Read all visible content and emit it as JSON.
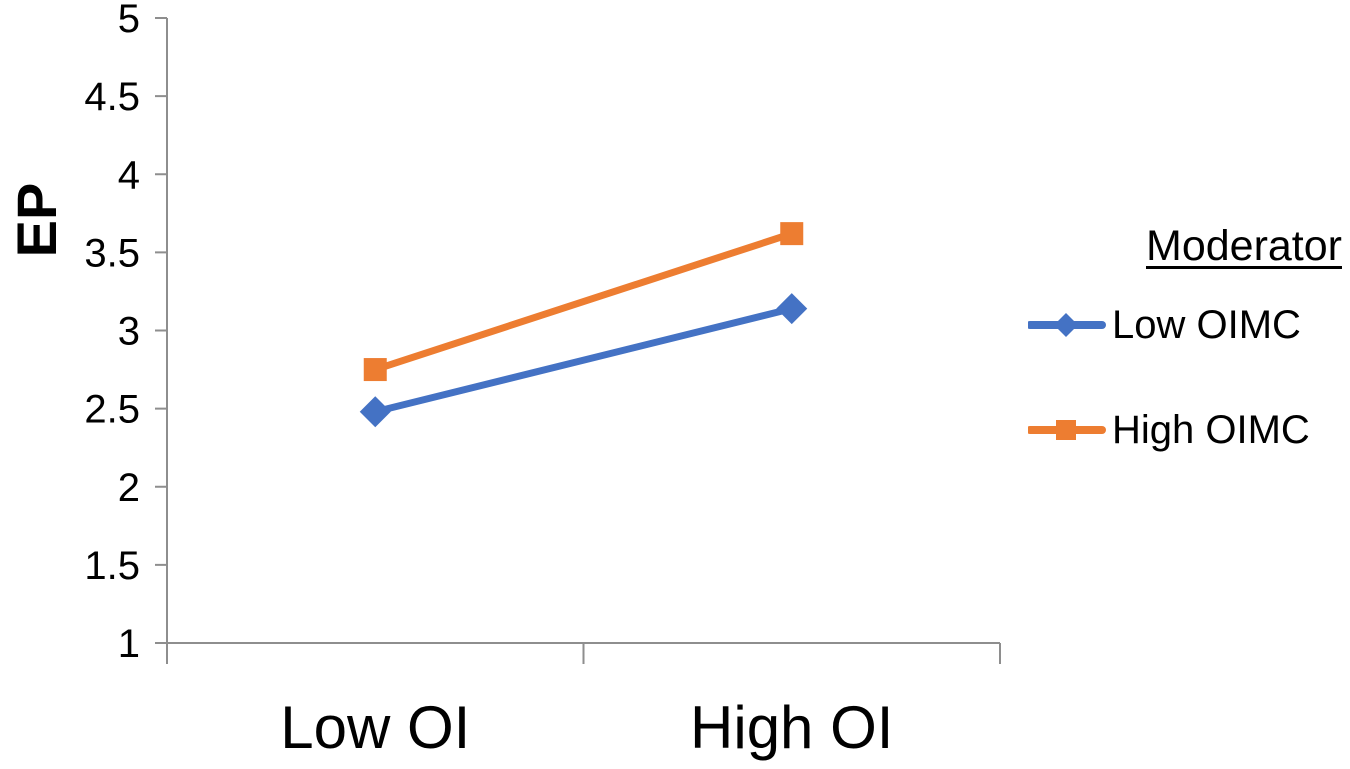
{
  "figure": {
    "y_axis_title": "EP",
    "x_tick_labels": [
      "Low OI",
      "High OI"
    ],
    "y_tick_labels": [
      "1",
      "1.5",
      "2",
      "2.5",
      "3",
      "3.5",
      "4",
      "4.5",
      "5"
    ]
  },
  "legend": {
    "title": "Moderator",
    "items": [
      {
        "label": "Low OIMC",
        "color": "#4472C4",
        "marker": "diamond"
      },
      {
        "label": "High OIMC",
        "color": "#ED7D31",
        "marker": "square"
      }
    ]
  },
  "colors": {
    "series_blue": "#4472C4",
    "series_orange": "#ED7D31",
    "axis": "#8E8E8E",
    "text": "#000000"
  },
  "chart_data": {
    "type": "line",
    "categories": [
      "Low OI",
      "High OI"
    ],
    "series": [
      {
        "name": "Low OIMC",
        "values": [
          2.48,
          3.14
        ],
        "color": "#4472C4",
        "marker": "diamond"
      },
      {
        "name": "High OIMC",
        "values": [
          2.75,
          3.62
        ],
        "color": "#ED7D31",
        "marker": "square"
      }
    ],
    "title": "",
    "xlabel": "",
    "ylabel": "EP",
    "ylim": [
      1,
      5
    ],
    "yticks": [
      1,
      1.5,
      2,
      2.5,
      3,
      3.5,
      4,
      4.5,
      5
    ],
    "grid": false,
    "legend_title": "Moderator",
    "legend_position": "right"
  }
}
